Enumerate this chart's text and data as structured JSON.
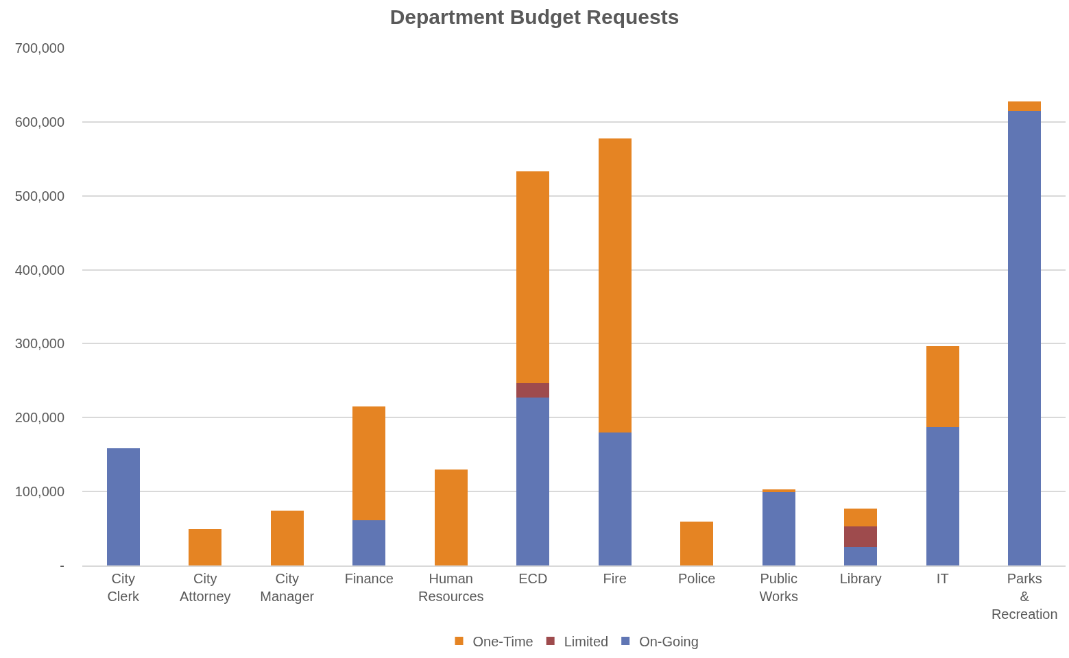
{
  "chart_data": {
    "type": "bar",
    "title": "Department Budget Requests",
    "categories": [
      "City Clerk",
      "City Attorney",
      "City Manager",
      "Finance",
      "Human Resources",
      "ECD",
      "Fire",
      "Police",
      "Public Works",
      "Library",
      "IT",
      "Parks & Recreation"
    ],
    "stacked": true,
    "series": [
      {
        "name": "On-Going",
        "color": "#6076b4",
        "values": [
          159000,
          0,
          0,
          61000,
          0,
          227000,
          180000,
          0,
          99000,
          25000,
          187000,
          615000
        ]
      },
      {
        "name": "Limited",
        "color": "#9e4b4d",
        "values": [
          0,
          0,
          0,
          0,
          0,
          20000,
          0,
          0,
          0,
          28000,
          0,
          0
        ]
      },
      {
        "name": "One-Time",
        "color": "#e58423",
        "values": [
          0,
          49000,
          74000,
          154000,
          130000,
          286000,
          398000,
          59000,
          4000,
          24000,
          110000,
          13000
        ]
      }
    ],
    "ylim": [
      0,
      700000
    ],
    "yticks": [
      {
        "value": 0,
        "label": "-"
      },
      {
        "value": 100000,
        "label": "100,000"
      },
      {
        "value": 200000,
        "label": "200,000"
      },
      {
        "value": 300000,
        "label": "300,000"
      },
      {
        "value": 400000,
        "label": "400,000"
      },
      {
        "value": 500000,
        "label": "500,000"
      },
      {
        "value": 600000,
        "label": "600,000"
      },
      {
        "value": 700000,
        "label": "700,000"
      }
    ],
    "grid": "y",
    "legend": "bottom"
  }
}
